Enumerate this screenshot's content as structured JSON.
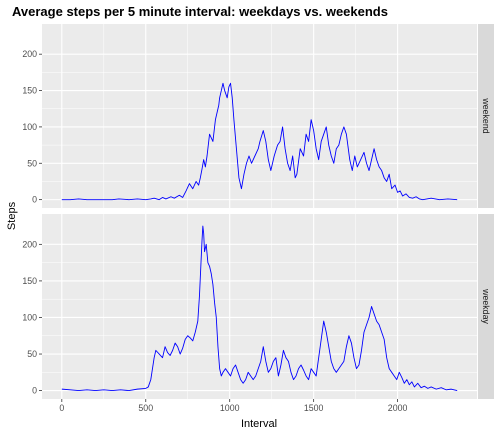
{
  "chart_data": {
    "type": "line",
    "title": "Average steps per 5 minute interval: weekdays vs. weekends",
    "xlabel": "Interval",
    "ylabel": "Steps",
    "xlim": [
      -118,
      2473
    ],
    "ylim": [
      -11.5,
      241.5
    ],
    "x_ticks": [
      0,
      500,
      1000,
      1500,
      2000
    ],
    "y_ticks": [
      0,
      50,
      100,
      150,
      200
    ],
    "grid": true,
    "line_color": "#0000FF",
    "panel_background": "#EBEBEB",
    "strip_background": "#D9D9D9",
    "panels": [
      {
        "label": "weekend",
        "points": [
          [
            0,
            0
          ],
          [
            50,
            0
          ],
          [
            100,
            1
          ],
          [
            150,
            0
          ],
          [
            200,
            0
          ],
          [
            300,
            0
          ],
          [
            340,
            1
          ],
          [
            400,
            0
          ],
          [
            450,
            1
          ],
          [
            500,
            0
          ],
          [
            530,
            1
          ],
          [
            550,
            2
          ],
          [
            580,
            0
          ],
          [
            600,
            3
          ],
          [
            620,
            1
          ],
          [
            650,
            4
          ],
          [
            670,
            2
          ],
          [
            700,
            6
          ],
          [
            720,
            3
          ],
          [
            740,
            12
          ],
          [
            760,
            22
          ],
          [
            780,
            15
          ],
          [
            800,
            25
          ],
          [
            815,
            20
          ],
          [
            825,
            30
          ],
          [
            835,
            42
          ],
          [
            845,
            55
          ],
          [
            855,
            45
          ],
          [
            865,
            60
          ],
          [
            880,
            90
          ],
          [
            900,
            80
          ],
          [
            915,
            110
          ],
          [
            935,
            130
          ],
          [
            940,
            140
          ],
          [
            950,
            150
          ],
          [
            960,
            160
          ],
          [
            970,
            150
          ],
          [
            985,
            140
          ],
          [
            995,
            155
          ],
          [
            1005,
            160
          ],
          [
            1015,
            140
          ],
          [
            1025,
            110
          ],
          [
            1040,
            70
          ],
          [
            1055,
            30
          ],
          [
            1070,
            15
          ],
          [
            1085,
            35
          ],
          [
            1100,
            50
          ],
          [
            1115,
            60
          ],
          [
            1130,
            50
          ],
          [
            1150,
            60
          ],
          [
            1170,
            70
          ],
          [
            1180,
            80
          ],
          [
            1200,
            95
          ],
          [
            1215,
            80
          ],
          [
            1230,
            55
          ],
          [
            1245,
            40
          ],
          [
            1265,
            60
          ],
          [
            1285,
            75
          ],
          [
            1300,
            80
          ],
          [
            1315,
            100
          ],
          [
            1330,
            70
          ],
          [
            1345,
            50
          ],
          [
            1360,
            40
          ],
          [
            1375,
            60
          ],
          [
            1390,
            30
          ],
          [
            1400,
            35
          ],
          [
            1420,
            70
          ],
          [
            1440,
            60
          ],
          [
            1455,
            90
          ],
          [
            1470,
            80
          ],
          [
            1485,
            110
          ],
          [
            1500,
            95
          ],
          [
            1515,
            70
          ],
          [
            1530,
            55
          ],
          [
            1545,
            80
          ],
          [
            1560,
            90
          ],
          [
            1575,
            100
          ],
          [
            1590,
            75
          ],
          [
            1605,
            60
          ],
          [
            1620,
            50
          ],
          [
            1635,
            70
          ],
          [
            1650,
            75
          ],
          [
            1665,
            90
          ],
          [
            1680,
            100
          ],
          [
            1695,
            90
          ],
          [
            1715,
            55
          ],
          [
            1730,
            40
          ],
          [
            1745,
            60
          ],
          [
            1760,
            45
          ],
          [
            1780,
            55
          ],
          [
            1800,
            65
          ],
          [
            1815,
            50
          ],
          [
            1830,
            40
          ],
          [
            1845,
            55
          ],
          [
            1860,
            70
          ],
          [
            1875,
            55
          ],
          [
            1890,
            45
          ],
          [
            1905,
            40
          ],
          [
            1920,
            30
          ],
          [
            1935,
            25
          ],
          [
            1950,
            35
          ],
          [
            1965,
            15
          ],
          [
            1985,
            20
          ],
          [
            2000,
            10
          ],
          [
            2015,
            12
          ],
          [
            2030,
            5
          ],
          [
            2050,
            8
          ],
          [
            2070,
            3
          ],
          [
            2090,
            2
          ],
          [
            2110,
            4
          ],
          [
            2130,
            1
          ],
          [
            2150,
            0
          ],
          [
            2200,
            2
          ],
          [
            2250,
            0
          ],
          [
            2300,
            1
          ],
          [
            2355,
            0
          ]
        ]
      },
      {
        "label": "weekday",
        "points": [
          [
            0,
            2
          ],
          [
            50,
            1
          ],
          [
            100,
            0
          ],
          [
            150,
            1
          ],
          [
            200,
            0
          ],
          [
            250,
            1
          ],
          [
            300,
            0
          ],
          [
            350,
            1
          ],
          [
            400,
            0
          ],
          [
            450,
            2
          ],
          [
            500,
            3
          ],
          [
            515,
            5
          ],
          [
            530,
            15
          ],
          [
            540,
            30
          ],
          [
            550,
            45
          ],
          [
            560,
            55
          ],
          [
            580,
            50
          ],
          [
            600,
            45
          ],
          [
            615,
            60
          ],
          [
            630,
            52
          ],
          [
            645,
            48
          ],
          [
            660,
            55
          ],
          [
            675,
            65
          ],
          [
            690,
            60
          ],
          [
            705,
            50
          ],
          [
            720,
            58
          ],
          [
            735,
            70
          ],
          [
            750,
            75
          ],
          [
            765,
            72
          ],
          [
            780,
            68
          ],
          [
            795,
            80
          ],
          [
            810,
            95
          ],
          [
            820,
            130
          ],
          [
            830,
            180
          ],
          [
            835,
            205
          ],
          [
            840,
            225
          ],
          [
            845,
            215
          ],
          [
            850,
            190
          ],
          [
            860,
            200
          ],
          [
            870,
            175
          ],
          [
            880,
            170
          ],
          [
            890,
            160
          ],
          [
            900,
            145
          ],
          [
            910,
            120
          ],
          [
            920,
            100
          ],
          [
            930,
            60
          ],
          [
            940,
            30
          ],
          [
            950,
            20
          ],
          [
            960,
            25
          ],
          [
            975,
            30
          ],
          [
            990,
            25
          ],
          [
            1005,
            20
          ],
          [
            1020,
            30
          ],
          [
            1035,
            35
          ],
          [
            1050,
            25
          ],
          [
            1065,
            15
          ],
          [
            1080,
            10
          ],
          [
            1095,
            15
          ],
          [
            1110,
            25
          ],
          [
            1125,
            20
          ],
          [
            1140,
            15
          ],
          [
            1155,
            20
          ],
          [
            1170,
            30
          ],
          [
            1185,
            40
          ],
          [
            1200,
            60
          ],
          [
            1215,
            40
          ],
          [
            1230,
            25
          ],
          [
            1245,
            30
          ],
          [
            1260,
            40
          ],
          [
            1275,
            45
          ],
          [
            1290,
            20
          ],
          [
            1305,
            35
          ],
          [
            1320,
            55
          ],
          [
            1335,
            45
          ],
          [
            1350,
            40
          ],
          [
            1365,
            25
          ],
          [
            1380,
            15
          ],
          [
            1395,
            20
          ],
          [
            1410,
            30
          ],
          [
            1425,
            35
          ],
          [
            1440,
            28
          ],
          [
            1455,
            20
          ],
          [
            1470,
            15
          ],
          [
            1485,
            30
          ],
          [
            1500,
            25
          ],
          [
            1515,
            20
          ],
          [
            1530,
            45
          ],
          [
            1545,
            70
          ],
          [
            1560,
            95
          ],
          [
            1575,
            80
          ],
          [
            1590,
            60
          ],
          [
            1605,
            40
          ],
          [
            1620,
            30
          ],
          [
            1635,
            25
          ],
          [
            1650,
            30
          ],
          [
            1665,
            35
          ],
          [
            1680,
            40
          ],
          [
            1695,
            60
          ],
          [
            1710,
            75
          ],
          [
            1725,
            65
          ],
          [
            1740,
            45
          ],
          [
            1755,
            30
          ],
          [
            1770,
            35
          ],
          [
            1785,
            55
          ],
          [
            1800,
            80
          ],
          [
            1815,
            90
          ],
          [
            1830,
            100
          ],
          [
            1845,
            115
          ],
          [
            1860,
            105
          ],
          [
            1875,
            95
          ],
          [
            1890,
            90
          ],
          [
            1905,
            80
          ],
          [
            1920,
            70
          ],
          [
            1935,
            45
          ],
          [
            1950,
            30
          ],
          [
            1965,
            25
          ],
          [
            1980,
            20
          ],
          [
            1995,
            15
          ],
          [
            2010,
            25
          ],
          [
            2025,
            18
          ],
          [
            2040,
            10
          ],
          [
            2055,
            15
          ],
          [
            2070,
            8
          ],
          [
            2085,
            12
          ],
          [
            2100,
            5
          ],
          [
            2120,
            10
          ],
          [
            2140,
            4
          ],
          [
            2160,
            6
          ],
          [
            2180,
            3
          ],
          [
            2200,
            5
          ],
          [
            2230,
            2
          ],
          [
            2260,
            4
          ],
          [
            2290,
            1
          ],
          [
            2320,
            2
          ],
          [
            2355,
            0
          ]
        ]
      }
    ]
  }
}
